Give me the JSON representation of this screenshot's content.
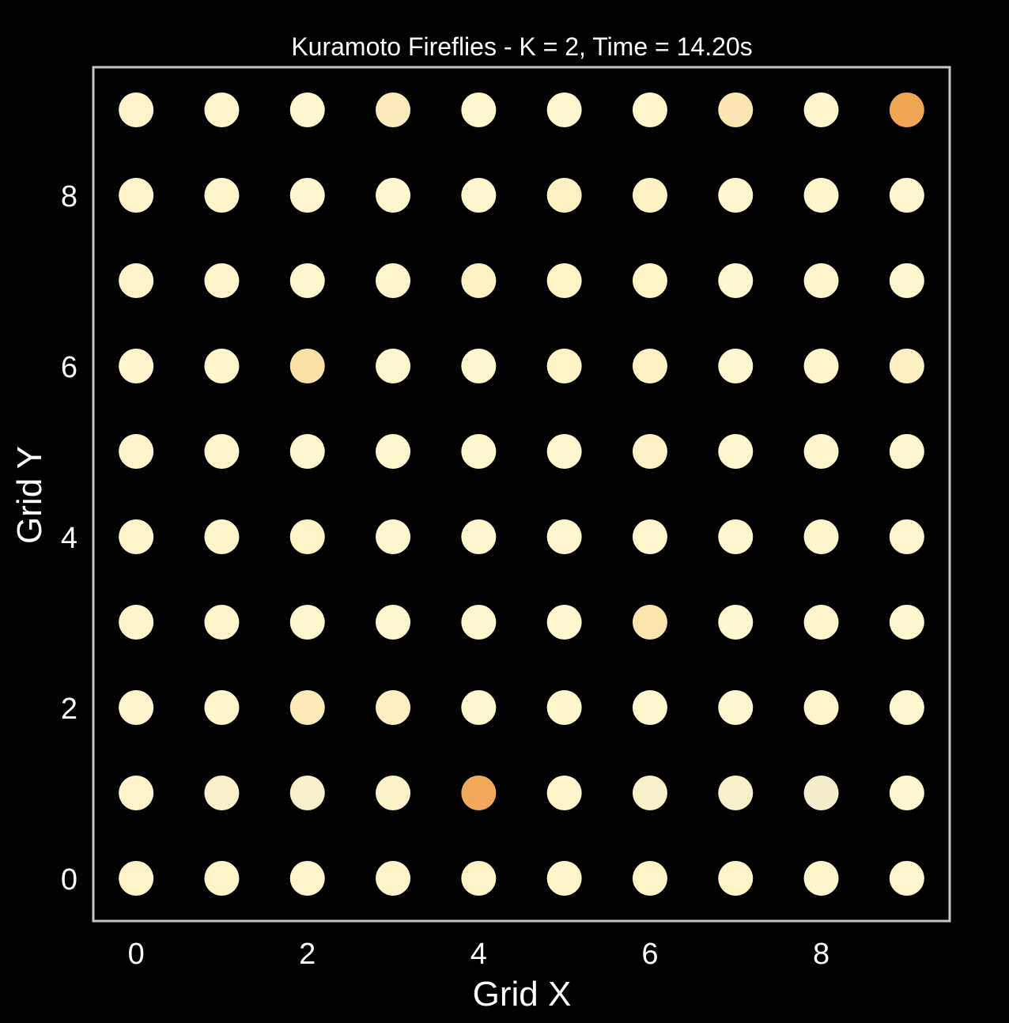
{
  "chart_data": {
    "type": "scatter",
    "title": "Kuramoto Fireflies - K = 2, Time = 14.20s",
    "xlabel": "Grid X",
    "ylabel": "Grid Y",
    "xlim": [
      -0.5,
      9.5
    ],
    "ylim": [
      -0.5,
      9.5
    ],
    "xticks": [
      0,
      2,
      4,
      6,
      8
    ],
    "yticks": [
      0,
      2,
      4,
      6,
      8
    ],
    "grid": false,
    "background": "#000000",
    "frame_color": "#c8c8c8",
    "base_color": "#fff7c9",
    "x": [
      0,
      1,
      2,
      3,
      4,
      5,
      6,
      7,
      8,
      9
    ],
    "y": [
      0,
      1,
      2,
      3,
      4,
      5,
      6,
      7,
      8,
      9
    ],
    "colors": [
      [
        "#fdf3c7",
        "#fef4c9",
        "#fef5ca",
        "#fef4c8",
        "#fdf3c7",
        "#fef5ca",
        "#fdf3c7",
        "#fef4c8",
        "#fef5ca",
        "#fef6cc"
      ],
      [
        "#fef4c9",
        "#f8f0c9",
        "#f8f0c9",
        "#fcf2c8",
        "#f2a85a",
        "#fef5ca",
        "#f8f0c9",
        "#f8f0c9",
        "#f6eeca",
        "#fef6cc"
      ],
      [
        "#fef4c9",
        "#fef5ca",
        "#fcebb8",
        "#fdefc1",
        "#fef6cc",
        "#fef5ca",
        "#fef6cc",
        "#fef6cc",
        "#fef5ca",
        "#fef6cc"
      ],
      [
        "#fef5ca",
        "#fef5ca",
        "#fef6cc",
        "#fef6cc",
        "#fef6cc",
        "#fef6cc",
        "#f9e5ad",
        "#fef6cc",
        "#fef5ca",
        "#fef6cc"
      ],
      [
        "#fef5ca",
        "#fef5ca",
        "#fef4c8",
        "#fef6cc",
        "#fef6cc",
        "#fef6cc",
        "#fef6cc",
        "#fef6cc",
        "#fef5ca",
        "#fef6cc"
      ],
      [
        "#fef5ca",
        "#fef5ca",
        "#fef6cc",
        "#fef6cc",
        "#fef6cc",
        "#fef6cc",
        "#fcf0c4",
        "#fef6cc",
        "#fef5ca",
        "#fef6cc"
      ],
      [
        "#fef5ca",
        "#fef5ca",
        "#fbe1a6",
        "#fef6cc",
        "#fef6cc",
        "#fef4c6",
        "#fdf1c3",
        "#fef6cc",
        "#fef5ca",
        "#fcefc2"
      ],
      [
        "#fef4c9",
        "#fef5ca",
        "#fef6cc",
        "#fef5ca",
        "#fdf1c3",
        "#fef4c6",
        "#fef4c6",
        "#fef6cc",
        "#fef5ca",
        "#fef6cc"
      ],
      [
        "#fef4c9",
        "#fef5ca",
        "#fef6cc",
        "#fef6cc",
        "#fef6cc",
        "#fdf1c3",
        "#fdf1c3",
        "#fef6cc",
        "#fef5ca",
        "#fef6cc"
      ],
      [
        "#fef4c9",
        "#fef5ca",
        "#fef6cc",
        "#fbeabb",
        "#fef6cc",
        "#fef6cc",
        "#fef5ca",
        "#fae6b2",
        "#fef5ca",
        "#f0a555"
      ]
    ]
  }
}
